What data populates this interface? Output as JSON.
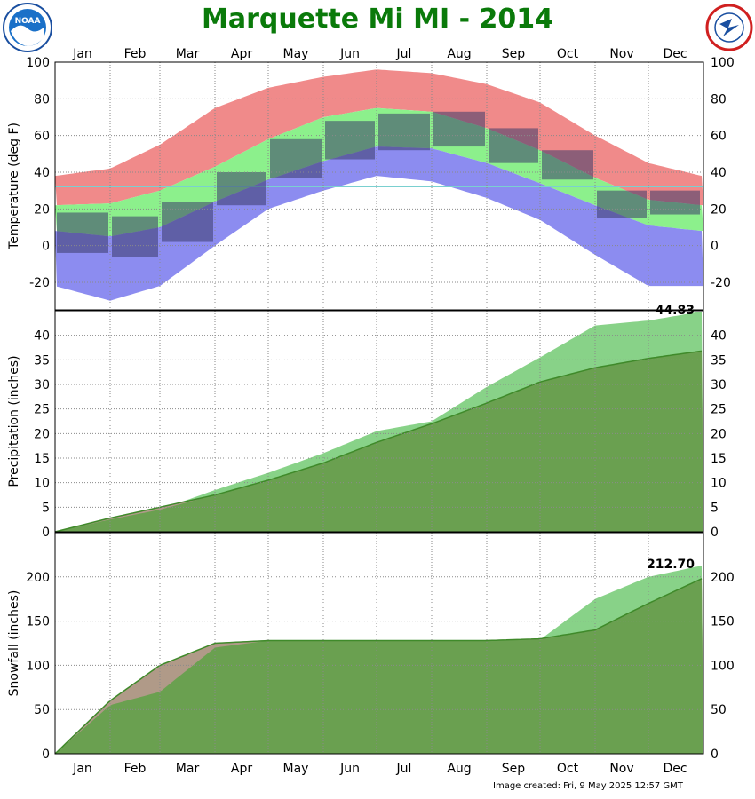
{
  "page": {
    "title": "Marquette Mi MI - 2014",
    "footer": "Image created: Fri, 9 May 2025 12:57 GMT",
    "logo_left_icon": "noaa-logo-icon",
    "logo_left_text": "NOAA",
    "logo_right_icon": "national-weather-service-logo-icon",
    "logo_right_text": "NATIONAL WEATHER SERVICE"
  },
  "colors": {
    "title": "#0a7a0a",
    "record_high_band": "#f08a8a",
    "normal_band": "#8cf08c",
    "record_low_band": "#8c8cf0",
    "observed_bar": "#3a3a6a",
    "accum_observed": "#88d288",
    "accum_normal": "#6aa050",
    "accum_deficit": "#b09a88",
    "freezing_line": "#7ad0d0"
  },
  "chart_data": [
    {
      "type": "area",
      "panel": "temperature",
      "ylabel": "Temperature (deg F)",
      "ylim": [
        -35,
        100
      ],
      "yticks": [
        100,
        80,
        60,
        40,
        20,
        0,
        -20
      ],
      "months": [
        "Jan",
        "Feb",
        "Mar",
        "Apr",
        "May",
        "Jun",
        "Jul",
        "Aug",
        "Sep",
        "Oct",
        "Nov",
        "Dec"
      ],
      "grid": true,
      "x_day": [
        1,
        32,
        60,
        91,
        121,
        152,
        182,
        213,
        244,
        274,
        305,
        335,
        365
      ],
      "normal_high": [
        22,
        23,
        30,
        43,
        58,
        70,
        75,
        73,
        64,
        52,
        37,
        25,
        22
      ],
      "normal_low": [
        8,
        5,
        10,
        24,
        36,
        46,
        54,
        53,
        45,
        34,
        22,
        11,
        8
      ],
      "record_high": [
        38,
        42,
        55,
        75,
        86,
        92,
        96,
        94,
        88,
        78,
        60,
        45,
        38
      ],
      "record_low": [
        -22,
        -30,
        -22,
        0,
        20,
        30,
        38,
        35,
        26,
        14,
        -5,
        -22,
        -22
      ],
      "observed_monthly": [
        {
          "month": "Jan",
          "high": 18,
          "low": -4
        },
        {
          "month": "Feb",
          "high": 16,
          "low": -6
        },
        {
          "month": "Mar",
          "high": 24,
          "low": 2
        },
        {
          "month": "Apr",
          "high": 40,
          "low": 22
        },
        {
          "month": "May",
          "high": 58,
          "low": 37
        },
        {
          "month": "Jun",
          "high": 68,
          "low": 47
        },
        {
          "month": "Jul",
          "high": 72,
          "low": 52
        },
        {
          "month": "Aug",
          "high": 73,
          "low": 54
        },
        {
          "month": "Sep",
          "high": 64,
          "low": 45
        },
        {
          "month": "Oct",
          "high": 52,
          "low": 36
        },
        {
          "month": "Nov",
          "high": 30,
          "low": 15
        },
        {
          "month": "Dec",
          "high": 30,
          "low": 17
        }
      ]
    },
    {
      "type": "area",
      "panel": "precipitation",
      "ylabel": "Precipitation (inches)",
      "ylim": [
        0,
        45
      ],
      "yticks": [
        0,
        5,
        10,
        15,
        20,
        25,
        30,
        35,
        40
      ],
      "grid": true,
      "annotation": "44.83",
      "x_day": [
        1,
        32,
        60,
        91,
        121,
        152,
        182,
        213,
        244,
        274,
        305,
        335,
        365
      ],
      "observed_cumulative": [
        0,
        2.5,
        4.5,
        8.5,
        12,
        16,
        20.5,
        22.5,
        29.5,
        35.5,
        42,
        43,
        44.83
      ],
      "normal_cumulative": [
        0,
        2.8,
        5,
        7.5,
        10.5,
        14,
        18.2,
        22,
        26.2,
        30.5,
        33.4,
        35.3,
        36.8
      ]
    },
    {
      "type": "area",
      "panel": "snowfall",
      "ylabel": "Snowfall (inches)",
      "ylim": [
        0,
        250
      ],
      "yticks": [
        0,
        50,
        100,
        150,
        200
      ],
      "grid": true,
      "annotation": "212.70",
      "x_day": [
        1,
        32,
        60,
        91,
        121,
        152,
        182,
        213,
        244,
        274,
        305,
        335,
        365
      ],
      "observed_cumulative": [
        0,
        55,
        70,
        120,
        128,
        128,
        128,
        128,
        128,
        129,
        175,
        200,
        212.7
      ],
      "normal_cumulative": [
        0,
        60,
        100,
        125,
        128,
        128,
        128,
        128,
        128,
        130,
        140,
        170,
        198
      ]
    }
  ]
}
